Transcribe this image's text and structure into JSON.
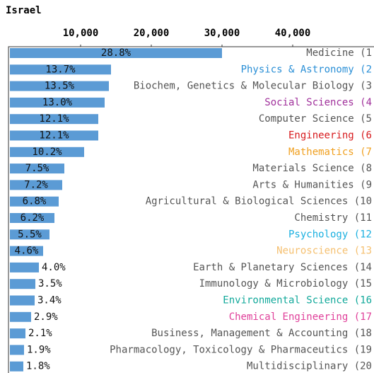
{
  "chart_data": {
    "type": "barh",
    "title": "Israel",
    "categories": [
      "Medicine (1",
      "Physics & Astronomy (2",
      "Biochem, Genetics & Molecular Biology (3",
      "Social Sciences (4",
      "Computer Science (5",
      "Engineering (6",
      "Mathematics (7",
      "Materials Science (8",
      "Arts & Humanities (9",
      "Agricultural & Biological Sciences (10",
      "Chemistry (11",
      "Psychology (12",
      "Neuroscience (13",
      "Earth & Planetary Sciences (14",
      "Immunology & Microbiology (15",
      "Environmental Science (16",
      "Chemical Engineering (17",
      "Business, Management & Accounting (18",
      "Pharmacology, Toxicology & Pharmaceutics (19",
      "Multidisciplinary (20"
    ],
    "category_colors": [
      "#555555",
      "#2a8fd6",
      "#555555",
      "#a0309b",
      "#555555",
      "#d7191c",
      "#f0a020",
      "#555555",
      "#555555",
      "#555555",
      "#555555",
      "#1ab0e0",
      "#f5c070",
      "#555555",
      "#555555",
      "#10a89a",
      "#e0409a",
      "#555555",
      "#555555",
      "#555555"
    ],
    "values": [
      30000,
      14300,
      14000,
      13400,
      12500,
      12500,
      10500,
      7700,
      7400,
      6900,
      6300,
      5600,
      4700,
      4100,
      3600,
      3500,
      3000,
      2200,
      2000,
      1900
    ],
    "value_labels": [
      "28.8%",
      "13.7%",
      "13.5%",
      "13.0%",
      "12.1%",
      "12.1%",
      "10.2%",
      "7.5%",
      "7.2%",
      "6.8%",
      "6.2%",
      "5.5%",
      "4.6%",
      "4.0%",
      "3.5%",
      "3.4%",
      "2.9%",
      "2.1%",
      "1.9%",
      "1.8%"
    ],
    "color": "#5b9bd5",
    "xlim": [
      0,
      51400
    ],
    "xticks": [
      {
        "value": 10000,
        "label": "10,000"
      },
      {
        "value": 20000,
        "label": "20,000"
      },
      {
        "value": 30000,
        "label": "30,000"
      },
      {
        "value": 40000,
        "label": "40,000"
      }
    ]
  }
}
